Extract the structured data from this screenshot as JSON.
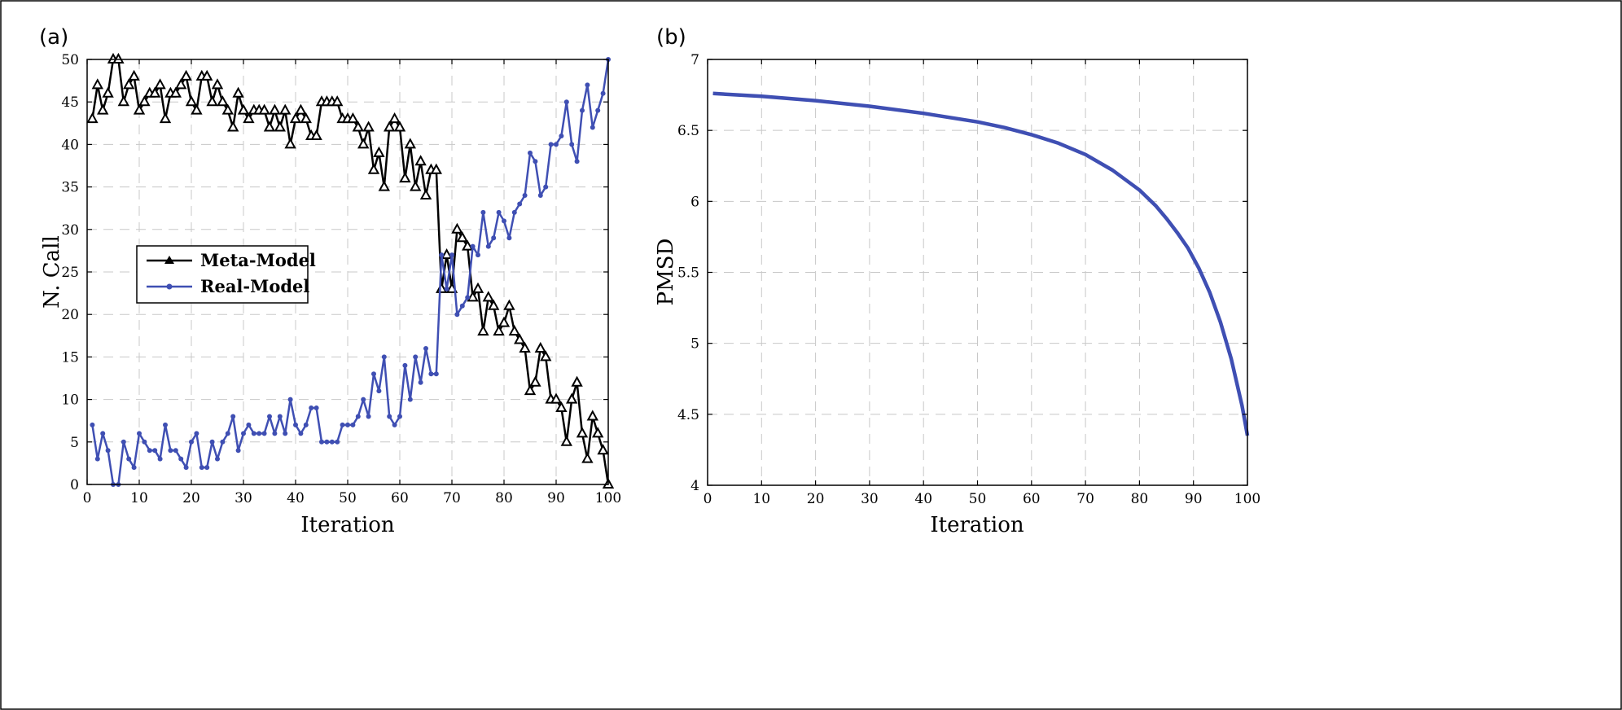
{
  "chart_data": [
    {
      "type": "line",
      "panel_label": "(a)",
      "xlabel": "Iteration",
      "ylabel": "N. Call",
      "xlim": [
        0,
        100
      ],
      "ylim": [
        0,
        50
      ],
      "xticks": [
        0,
        10,
        20,
        30,
        40,
        50,
        60,
        70,
        80,
        90,
        100
      ],
      "yticks": [
        0,
        5,
        10,
        15,
        20,
        25,
        30,
        35,
        40,
        45,
        50
      ],
      "grid": true,
      "legend": "center-left",
      "x": [
        1,
        2,
        3,
        4,
        5,
        6,
        7,
        8,
        9,
        10,
        11,
        12,
        13,
        14,
        15,
        16,
        17,
        18,
        19,
        20,
        21,
        22,
        23,
        24,
        25,
        26,
        27,
        28,
        29,
        30,
        31,
        32,
        33,
        34,
        35,
        36,
        37,
        38,
        39,
        40,
        41,
        42,
        43,
        44,
        45,
        46,
        47,
        48,
        49,
        50,
        51,
        52,
        53,
        54,
        55,
        56,
        57,
        58,
        59,
        60,
        61,
        62,
        63,
        64,
        65,
        66,
        67,
        68,
        69,
        70,
        71,
        72,
        73,
        74,
        75,
        76,
        77,
        78,
        79,
        80,
        81,
        82,
        83,
        84,
        85,
        86,
        87,
        88,
        89,
        90,
        91,
        92,
        93,
        94,
        95,
        96,
        97,
        98,
        99,
        100
      ],
      "series": [
        {
          "name": "Meta-Model",
          "color": "#000000",
          "marker": "triangle",
          "values": [
            43,
            47,
            44,
            46,
            50,
            50,
            45,
            47,
            48,
            44,
            45,
            46,
            46,
            47,
            43,
            46,
            46,
            47,
            48,
            45,
            44,
            48,
            48,
            45,
            47,
            45,
            44,
            42,
            46,
            44,
            43,
            44,
            44,
            44,
            42,
            44,
            42,
            44,
            40,
            43,
            44,
            43,
            41,
            41,
            45,
            45,
            45,
            45,
            43,
            43,
            43,
            42,
            40,
            42,
            37,
            39,
            35,
            42,
            43,
            42,
            36,
            40,
            35,
            38,
            34,
            37,
            37,
            23,
            27,
            23,
            30,
            29,
            28,
            22,
            23,
            18,
            22,
            21,
            18,
            19,
            21,
            18,
            17,
            16,
            11,
            12,
            16,
            15,
            10,
            10,
            9,
            5,
            10,
            12,
            6,
            3,
            8,
            6,
            4,
            0
          ]
        },
        {
          "name": "Real-Model",
          "color": "#3f4fb3",
          "marker": "circle",
          "values": [
            7,
            3,
            6,
            4,
            0,
            0,
            5,
            3,
            2,
            6,
            5,
            4,
            4,
            3,
            7,
            4,
            4,
            3,
            2,
            5,
            6,
            2,
            2,
            5,
            3,
            5,
            6,
            8,
            4,
            6,
            7,
            6,
            6,
            6,
            8,
            6,
            8,
            6,
            10,
            7,
            6,
            7,
            9,
            9,
            5,
            5,
            5,
            5,
            7,
            7,
            7,
            8,
            10,
            8,
            13,
            11,
            15,
            8,
            7,
            8,
            14,
            10,
            15,
            12,
            16,
            13,
            13,
            27,
            23,
            27,
            20,
            21,
            22,
            28,
            27,
            32,
            28,
            29,
            32,
            31,
            29,
            32,
            33,
            34,
            39,
            38,
            34,
            35,
            40,
            40,
            41,
            45,
            40,
            38,
            44,
            47,
            42,
            44,
            46,
            50
          ]
        }
      ]
    },
    {
      "type": "line",
      "panel_label": "(b)",
      "xlabel": "Iteration",
      "ylabel": "PMSD",
      "xlim": [
        0,
        100
      ],
      "ylim": [
        4,
        7
      ],
      "xticks": [
        0,
        10,
        20,
        30,
        40,
        50,
        60,
        70,
        80,
        90,
        100
      ],
      "yticks": [
        4,
        4.5,
        5,
        5.5,
        6,
        6.5,
        7
      ],
      "grid": true,
      "x": [
        1,
        10,
        20,
        30,
        40,
        50,
        55,
        60,
        65,
        70,
        75,
        80,
        83,
        85,
        87,
        89,
        91,
        93,
        95,
        97,
        99,
        100
      ],
      "series": [
        {
          "color": "#3f4fb3",
          "values": [
            6.76,
            6.74,
            6.71,
            6.67,
            6.62,
            6.56,
            6.52,
            6.47,
            6.41,
            6.33,
            6.22,
            6.08,
            5.97,
            5.88,
            5.78,
            5.67,
            5.53,
            5.36,
            5.15,
            4.89,
            4.56,
            4.35
          ]
        }
      ]
    }
  ]
}
